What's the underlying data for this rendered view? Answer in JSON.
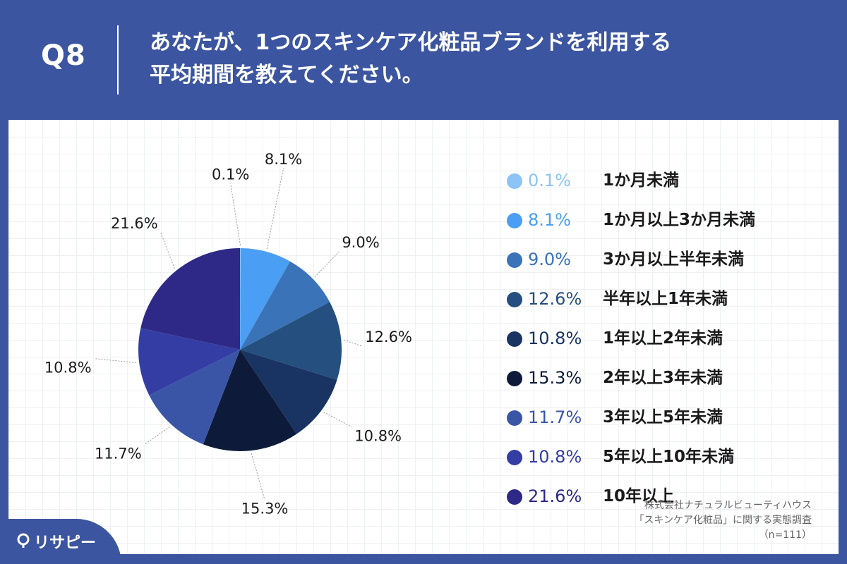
{
  "header": {
    "question_number": "Q8",
    "title_line1": "あなたが、1つのスキンケア化粧品ブランドを利用する",
    "title_line2": "平均期間を教えてください。"
  },
  "chart_data": {
    "type": "pie",
    "start_angle_deg": 0,
    "direction": "clockwise",
    "categories": [
      "1か月未満",
      "1か月以上3か月未満",
      "3か月以上半年未満",
      "半年以上1年未満",
      "1年以上2年未満",
      "2年以上3年未満",
      "3年以上5年未満",
      "5年以上10年未満",
      "10年以上"
    ],
    "values": [
      0.1,
      8.1,
      9.0,
      12.6,
      10.8,
      15.3,
      11.7,
      10.8,
      21.6
    ],
    "value_labels": [
      "0.1%",
      "8.1%",
      "9.0%",
      "12.6%",
      "10.8%",
      "15.3%",
      "11.7%",
      "10.8%",
      "21.6%"
    ],
    "colors": [
      "#8cc4f7",
      "#4a9ef3",
      "#3a73b8",
      "#244f7e",
      "#193462",
      "#0d1a3a",
      "#3a55a6",
      "#343da3",
      "#2e2887"
    ],
    "legend_position": "right"
  },
  "legend": {
    "items": [
      {
        "value": "0.1%",
        "label": "1か月未満",
        "color": "#8cc4f7"
      },
      {
        "value": "8.1%",
        "label": "1か月以上3か月未満",
        "color": "#4a9ef3"
      },
      {
        "value": "9.0%",
        "label": "3か月以上半年未満",
        "color": "#3a73b8"
      },
      {
        "value": "12.6%",
        "label": "半年以上1年未満",
        "color": "#244f7e"
      },
      {
        "value": "10.8%",
        "label": "1年以上2年未満",
        "color": "#193462"
      },
      {
        "value": "15.3%",
        "label": "2年以上3年未満",
        "color": "#0d1a3a"
      },
      {
        "value": "11.7%",
        "label": "3年以上5年未満",
        "color": "#3a55a6"
      },
      {
        "value": "10.8%",
        "label": "5年以上10年未満",
        "color": "#343da3"
      },
      {
        "value": "21.6%",
        "label": "10年以上",
        "color": "#2e2887"
      }
    ]
  },
  "source": {
    "line1": "株式会社ナチュラルビューティハウス",
    "line2": "「スキンケア化粧品」に関する実態調査",
    "line3": "（n=111）"
  },
  "logo": {
    "text": "リサピー",
    "icon": "pin-icon"
  },
  "colors": {
    "background": "#3c55a0",
    "panel": "#ffffff"
  }
}
